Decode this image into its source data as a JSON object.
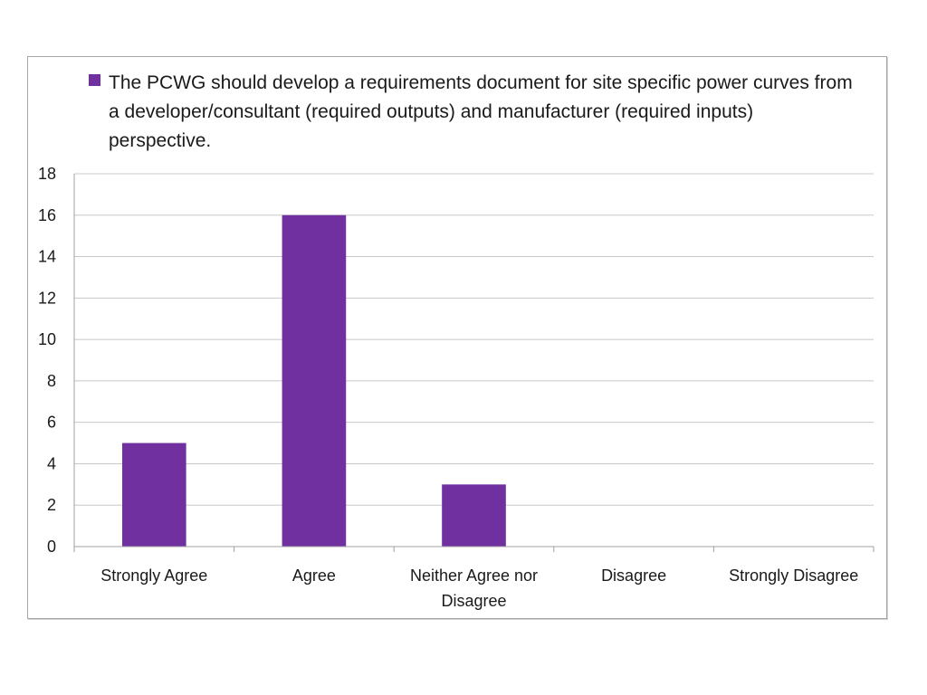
{
  "chart_data": {
    "type": "bar",
    "title": "",
    "xlabel": "",
    "ylabel": "",
    "categories": [
      [
        "Strongly Agree"
      ],
      [
        "Agree"
      ],
      [
        "Neither Agree nor",
        "Disagree"
      ],
      [
        "Disagree"
      ],
      [
        "Strongly Disagree"
      ]
    ],
    "series": [
      {
        "name": "The PCWG should develop a requirements document for site specific power curves from a developer/consultant (required outputs) and manufacturer (required inputs) perspective.",
        "values": [
          5,
          16,
          3,
          0,
          0
        ],
        "color": "#7030a0"
      }
    ],
    "ylim": [
      0,
      18
    ],
    "yticks": [
      0,
      2,
      4,
      6,
      8,
      10,
      12,
      14,
      16,
      18
    ],
    "grid": true,
    "legend_position": "top",
    "colors": {
      "gridline": "#c8c8c8",
      "axis": "#a0a0a0"
    }
  }
}
